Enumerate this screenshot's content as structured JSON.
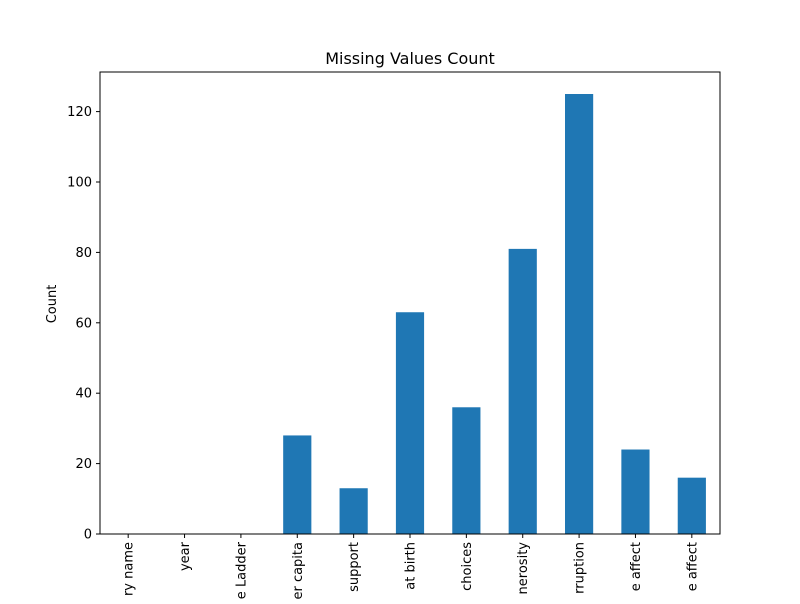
{
  "chart_data": {
    "type": "bar",
    "title": "Missing Values Count",
    "xlabel": "",
    "ylabel": "Count",
    "categories": [
      "Country name",
      "year",
      "Life Ladder",
      "Log GDP per capita",
      "Social support",
      "Healthy life expectancy at birth",
      "Freedom to make life choices",
      "Generosity",
      "Perceptions of corruption",
      "Positive affect",
      "Negative affect"
    ],
    "visible_tick_labels": [
      "ry name",
      "year",
      "e Ladder",
      "er capita",
      "support",
      "at birth",
      "choices",
      "nerosity",
      "rruption",
      "e affect",
      "e affect"
    ],
    "values": [
      0,
      0,
      0,
      28,
      13,
      63,
      36,
      81,
      125,
      24,
      16
    ],
    "ylim": [
      0,
      131.25
    ],
    "yticks": [
      0,
      20,
      40,
      60,
      80,
      100,
      120
    ],
    "grid": false,
    "legend": "none",
    "bar_color": "#1f77b4"
  }
}
